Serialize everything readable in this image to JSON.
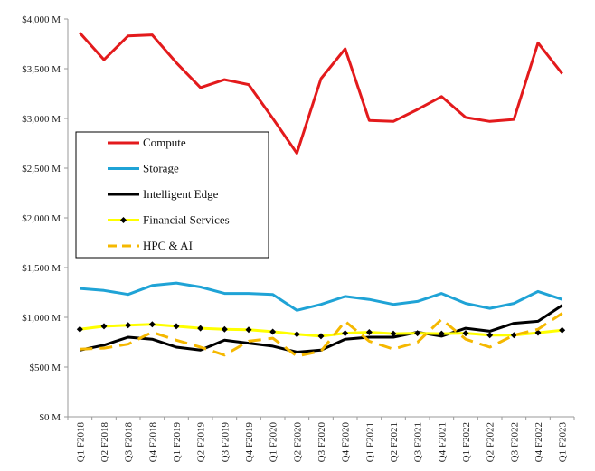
{
  "chart_data": {
    "type": "line",
    "title": "",
    "xlabel": "",
    "ylabel": "",
    "ylim": [
      0,
      4000
    ],
    "yticks": [
      0,
      500,
      1000,
      1500,
      2000,
      2500,
      3000,
      3500,
      4000
    ],
    "ytick_labels": [
      "$0 M",
      "$500 M",
      "$1,000 M",
      "$1,500 M",
      "$2,000 M",
      "$2,500 M",
      "$3,000 M",
      "$3,500 M",
      "$4,000 M"
    ],
    "grid": false,
    "legend_position": "center-left",
    "categories": [
      "Q1 F2018",
      "Q2 F2018",
      "Q3 F2018",
      "Q4 F2018",
      "Q1 F2019",
      "Q2 F2019",
      "Q3 F2019",
      "Q4 F2019",
      "Q1 F2020",
      "Q2 F2020",
      "Q3 F2020",
      "Q4 F2020",
      "Q1 F2021",
      "Q2 F2021",
      "Q3 F2021",
      "Q4 F2021",
      "Q1 F2022",
      "Q2 F2022",
      "Q3 F2022",
      "Q4 F2022",
      "Q1 F2023"
    ],
    "series": [
      {
        "name": "Compute",
        "color": "#e31a1c",
        "style": "solid",
        "marker": "none",
        "values": [
          3860,
          3590,
          3830,
          3840,
          3560,
          3310,
          3390,
          3340,
          3000,
          2650,
          3400,
          3700,
          2980,
          2970,
          3090,
          3220,
          3010,
          2970,
          2990,
          3760,
          3450
        ]
      },
      {
        "name": "Storage",
        "color": "#1fa3d6",
        "style": "solid",
        "marker": "none",
        "values": [
          1290,
          1270,
          1230,
          1320,
          1345,
          1305,
          1240,
          1240,
          1230,
          1070,
          1130,
          1210,
          1180,
          1130,
          1160,
          1240,
          1140,
          1090,
          1140,
          1260,
          1180
        ]
      },
      {
        "name": "Intelligent Edge",
        "color": "#000000",
        "style": "solid",
        "marker": "none",
        "values": [
          670,
          720,
          800,
          780,
          700,
          670,
          770,
          740,
          710,
          650,
          670,
          780,
          800,
          800,
          850,
          810,
          890,
          860,
          940,
          960,
          1120
        ]
      },
      {
        "name": "Financial Services",
        "color": "#ffff00",
        "style": "solid",
        "marker": "diamond",
        "marker_color": "#000000",
        "values": [
          880,
          910,
          920,
          930,
          910,
          890,
          880,
          875,
          855,
          830,
          810,
          840,
          850,
          835,
          840,
          835,
          840,
          820,
          820,
          845,
          870
        ]
      },
      {
        "name": "HPC & AI",
        "color": "#f5b800",
        "style": "dashed",
        "marker": "none",
        "values": [
          680,
          690,
          730,
          850,
          770,
          700,
          620,
          760,
          790,
          610,
          660,
          960,
          760,
          680,
          750,
          980,
          780,
          700,
          820,
          880,
          1040
        ]
      }
    ]
  }
}
